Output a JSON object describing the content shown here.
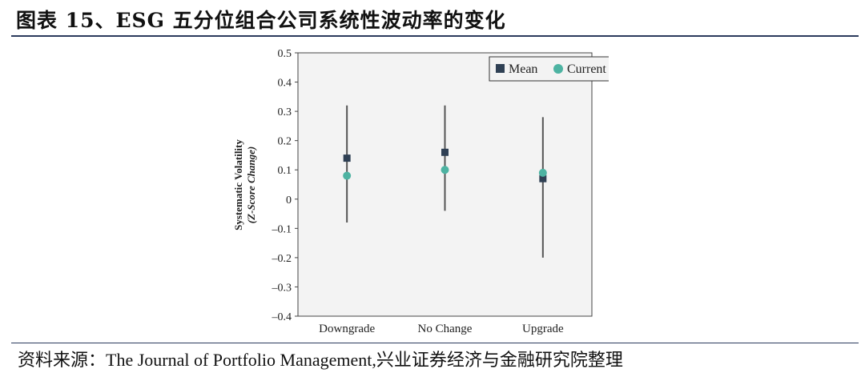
{
  "header": {
    "title": "图表 15、ESG 五分位组合公司系统性波动率的变化"
  },
  "footer": {
    "source": "资料来源：The Journal of Portfolio Management,兴业证券经济与金融研究院整理"
  },
  "chart_data": {
    "type": "scatter",
    "categories": [
      "Downgrade",
      "No Change",
      "Upgrade"
    ],
    "ylabel_line1": "Systematic Volatility",
    "ylabel_line2": "(Z-Score Change)",
    "ylim": [
      -0.4,
      0.5
    ],
    "yticks": [
      0.5,
      0.4,
      0.3,
      0.2,
      0.1,
      0,
      -0.1,
      -0.2,
      -0.3,
      -0.4
    ],
    "ytick_labels": [
      "0.5",
      "0.4",
      "0.3",
      "0.2",
      "0.1",
      "0",
      "–0.1",
      "–0.2",
      "–0.3",
      "–0.4"
    ],
    "legend_position": "top-right",
    "grid": false,
    "series": [
      {
        "name": "Mean",
        "marker": "square",
        "color": "#2f4054",
        "values": [
          0.14,
          0.16,
          0.07
        ]
      },
      {
        "name": "Current",
        "marker": "circle",
        "color": "#4db3a2",
        "values": [
          0.08,
          0.1,
          0.09
        ]
      }
    ],
    "ranges": [
      {
        "category": "Downgrade",
        "low": -0.08,
        "high": 0.32
      },
      {
        "category": "No Change",
        "low": -0.04,
        "high": 0.32
      },
      {
        "category": "Upgrade",
        "low": -0.2,
        "high": 0.28
      }
    ],
    "colors": {
      "range_line": "#555555",
      "axis": "#444444",
      "plot_bg": "#f3f3f3"
    }
  }
}
